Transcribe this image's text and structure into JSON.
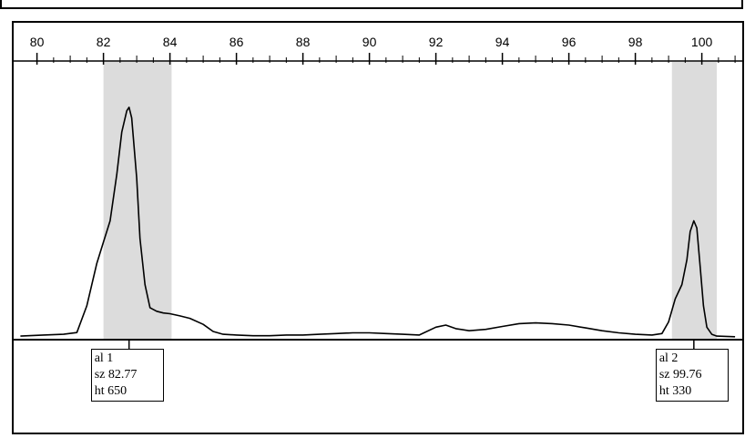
{
  "chart_data": {
    "type": "line",
    "title": "",
    "xlabel": "",
    "ylabel": "",
    "xlim": [
      79.5,
      101
    ],
    "ylim": [
      0,
      760
    ],
    "x_ticks": [
      80,
      82,
      84,
      86,
      88,
      90,
      92,
      94,
      96,
      98,
      100
    ],
    "grid": false,
    "highlight_regions": [
      {
        "x_start": 82.0,
        "x_end": 84.05,
        "color": "#dcdcdc"
      },
      {
        "x_start": 99.1,
        "x_end": 100.45,
        "color": "#dcdcdc"
      }
    ],
    "series": [
      {
        "color": "#000000",
        "x": [
          79.5,
          80.2,
          80.8,
          81.2,
          81.5,
          81.8,
          82.0,
          82.2,
          82.4,
          82.55,
          82.7,
          82.77,
          82.85,
          83.0,
          83.1,
          83.25,
          83.4,
          83.6,
          83.8,
          84.0,
          84.3,
          84.6,
          85.0,
          85.3,
          85.6,
          86.0,
          86.5,
          87.0,
          87.5,
          88.0,
          88.5,
          89.0,
          89.5,
          90.0,
          90.5,
          91.0,
          91.5,
          92.0,
          92.3,
          92.6,
          93.0,
          93.5,
          94.0,
          94.5,
          95.0,
          95.5,
          96.0,
          96.5,
          97.0,
          97.5,
          98.0,
          98.5,
          98.8,
          99.0,
          99.2,
          99.4,
          99.55,
          99.65,
          99.76,
          99.85,
          99.95,
          100.05,
          100.15,
          100.3,
          100.45,
          101.0
        ],
        "y": [
          5,
          8,
          10,
          15,
          90,
          210,
          270,
          330,
          460,
          580,
          640,
          650,
          620,
          450,
          280,
          150,
          85,
          75,
          70,
          68,
          62,
          55,
          38,
          18,
          10,
          8,
          6,
          6,
          8,
          8,
          10,
          12,
          14,
          14,
          12,
          10,
          8,
          30,
          36,
          26,
          20,
          24,
          32,
          40,
          42,
          40,
          36,
          28,
          20,
          14,
          10,
          8,
          12,
          45,
          110,
          150,
          220,
          300,
          330,
          310,
          200,
          90,
          30,
          10,
          5,
          3
        ]
      }
    ],
    "annotations": [
      {
        "x": 82.77,
        "lines": [
          "al 1",
          "sz 82.77",
          "ht 650"
        ]
      },
      {
        "x": 99.76,
        "lines": [
          "al 2",
          "sz 99.76",
          "ht 330"
        ]
      }
    ]
  }
}
